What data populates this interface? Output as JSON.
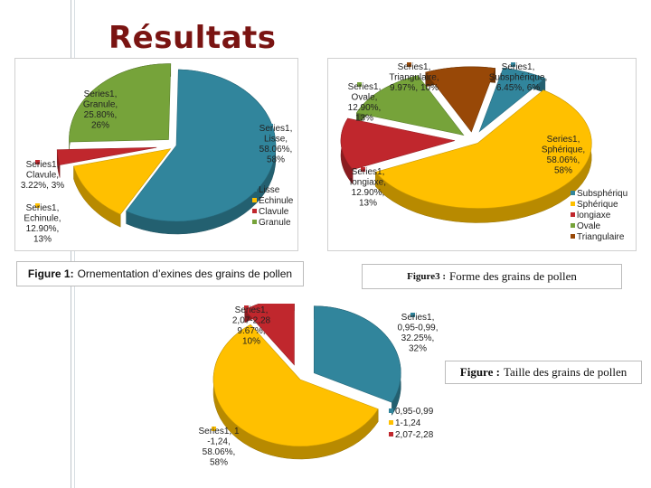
{
  "slide": {
    "title": "Résultats"
  },
  "captions": {
    "fig1_num": "Figure 1:",
    "fig1_text": "Ornementation d’exines des grains de pollen",
    "fig3_num": "Figure3 :",
    "fig3_text": "Forme des grains de pollen",
    "fig_taille_num": "Figure :",
    "fig_taille_text": "Taille des grains de pollen"
  },
  "chart_data": [
    {
      "type": "pie",
      "series_name": "Series1",
      "categories": [
        "Lisse",
        "Echinule",
        "Clavule",
        "Granule"
      ],
      "values": [
        58.06,
        12.9,
        3.22,
        25.8
      ],
      "percent_labels": [
        "58%",
        "13%",
        "3%",
        "26%"
      ],
      "value_labels": [
        "58.06%",
        "12.90%",
        "3.22%",
        "25.80%"
      ],
      "data_labels": [
        [
          "Series1,",
          "Lisse,",
          "58.06%,",
          "58%"
        ],
        [
          "Series1,",
          "Echinule,",
          "12.90%,",
          "13%"
        ],
        [
          "Series1,",
          "Clavule,",
          "3.22%, 3%"
        ],
        [
          "Series1,",
          "Granule,",
          "25.80%,",
          "26%"
        ]
      ],
      "colors": [
        "#31859c",
        "#ffc000",
        "#c0272d",
        "#76a33a"
      ],
      "legend": {
        "position": "right",
        "entries": [
          "Lisse",
          "Echinule",
          "Clavule",
          "Granule"
        ]
      }
    },
    {
      "type": "pie",
      "series_name": "Series1",
      "categories": [
        "Subsphérique",
        "Sphérique",
        "longiaxe",
        "Ovale",
        "Triangulaire"
      ],
      "values": [
        6.45,
        58.06,
        12.9,
        12.9,
        9.97
      ],
      "percent_labels": [
        "6%",
        "58%",
        "13%",
        "13%",
        "10%"
      ],
      "data_labels": [
        [
          "Series1,",
          "Subsphérique,",
          "6.45%, 6%"
        ],
        [
          "Series1,",
          "Sphérique,",
          "58.06%,",
          "58%"
        ],
        [
          "Series1,",
          "longiaxe,",
          "12.90%,",
          "13%"
        ],
        [
          "Series1,",
          "Ovale,",
          "12.90%,",
          "13%"
        ],
        [
          "Series1,",
          "Triangulaire,",
          "9.97%, 10%"
        ]
      ],
      "colors": [
        "#31859c",
        "#ffc000",
        "#c0272d",
        "#76a33a",
        "#984807"
      ],
      "legend": {
        "position": "right",
        "entries": [
          "Subsphériqu",
          "Sphérique",
          "longiaxe",
          "Ovale",
          "Triangulaire"
        ]
      }
    },
    {
      "type": "pie",
      "series_name": "Series1",
      "categories": [
        "0.95-0.99",
        "1-1,24",
        "2,07-2,28"
      ],
      "values": [
        32.25,
        58.06,
        9.67
      ],
      "percent_labels": [
        "32%",
        "58%",
        "10%"
      ],
      "data_labels": [
        [
          "Series1,",
          "0,95-0,99,",
          "32.25%,",
          "32%"
        ],
        [
          "Series1, 1",
          "-1,24,",
          "58.06%,",
          "58%"
        ],
        [
          "Series1,",
          "2,07-2,28",
          "9.67%,",
          "10%"
        ]
      ],
      "colors": [
        "#31859c",
        "#ffc000",
        "#c0272d"
      ],
      "legend": {
        "position": "right",
        "entries": [
          "0,95-0,99",
          "1-1,24",
          "2,07-2,28"
        ]
      }
    }
  ]
}
